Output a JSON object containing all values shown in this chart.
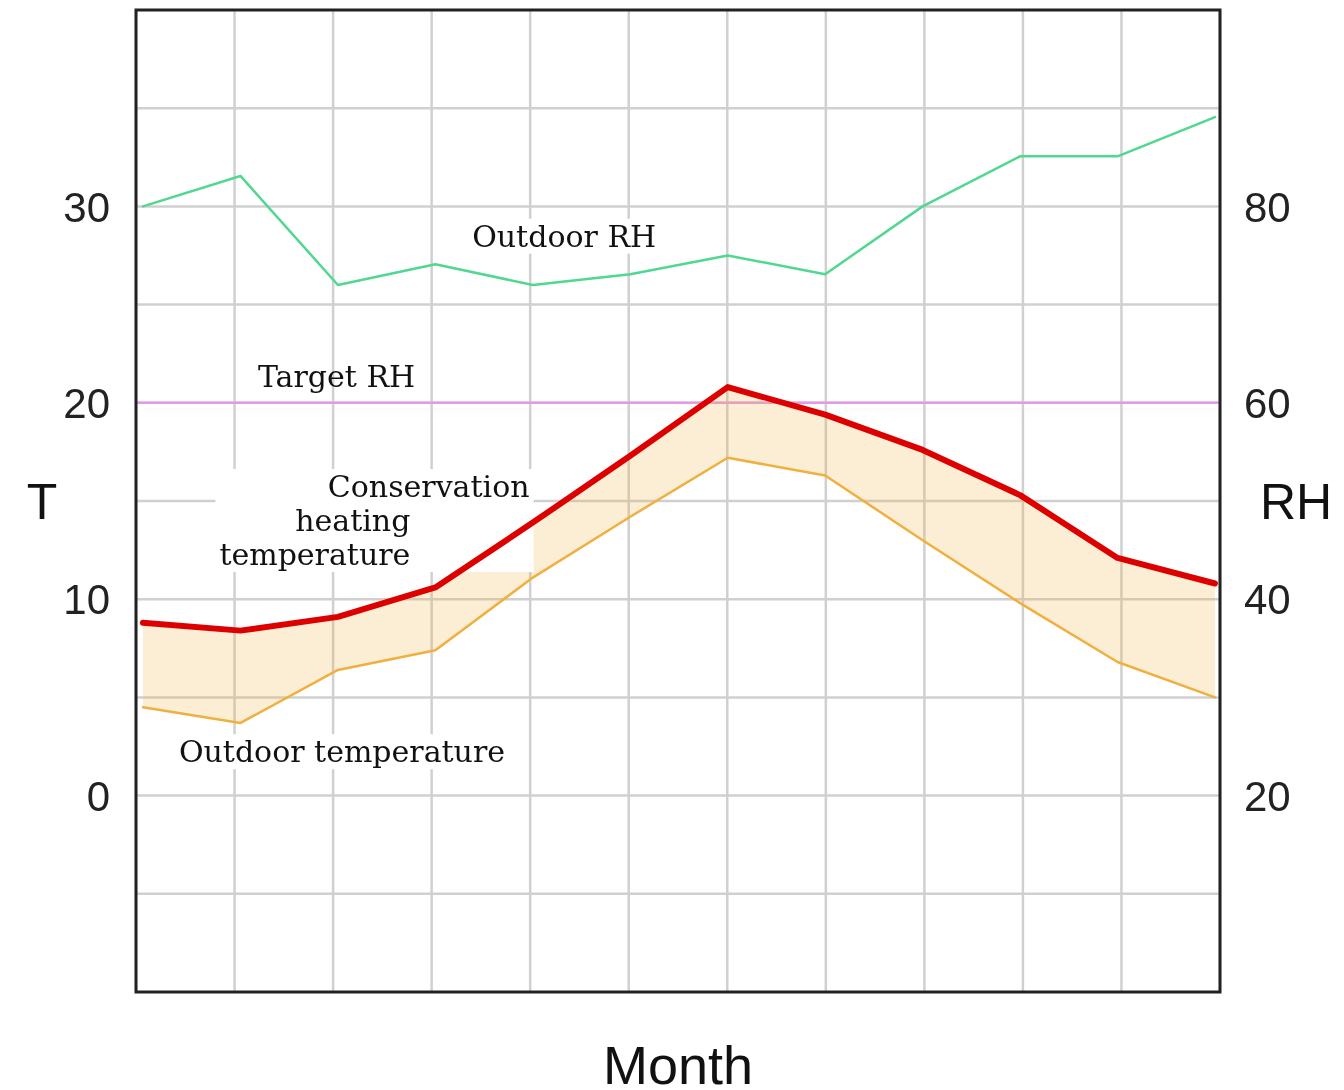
{
  "chart_data": {
    "type": "line",
    "xlabel": "Month",
    "ylabel": "T",
    "y2label": "RH",
    "categories": [
      null,
      null,
      null,
      null,
      null,
      null,
      null,
      null,
      null,
      null,
      null,
      null
    ],
    "ylim": [
      -10,
      40
    ],
    "yticks": [
      {
        "value": -5,
        "label": null
      },
      0,
      {
        "value": 5,
        "label": null
      },
      10,
      {
        "value": 15,
        "label": null
      },
      20,
      {
        "value": 25,
        "label": null
      },
      30,
      {
        "value": 35,
        "label": null
      }
    ],
    "y2lim": [
      0,
      100
    ],
    "y2ticks": [
      20,
      40,
      60,
      80
    ],
    "grid": true,
    "marker": "none",
    "line_style": "solid",
    "series": [
      {
        "name": "Conservation heating temperature",
        "color": "#dd0000",
        "values": [
          8.8,
          8.4,
          9.1,
          10.6,
          13.9,
          17.3,
          20.8,
          19.4,
          17.6,
          15.3,
          12.1,
          10.8
        ],
        "lower": [
          4.5,
          3.7,
          6.4,
          7.4,
          11.1,
          14.2,
          17.2,
          16.3,
          13.0,
          9.8,
          6.8,
          5.0
        ],
        "upper": [
          8.8,
          8.4,
          9.1,
          10.6,
          13.9,
          17.3,
          20.8,
          19.4,
          17.6,
          15.3,
          12.1,
          10.8
        ]
      },
      {
        "name": "Outdoor temperature",
        "color": "#f0b040",
        "values": [
          4.5,
          3.7,
          6.4,
          7.4,
          11.1,
          14.2,
          17.2,
          16.3,
          13.0,
          9.8,
          6.8,
          5.0
        ]
      },
      {
        "name": "Outdoor RH",
        "color": "#50d890",
        "axis": "y2",
        "values": [
          80.0,
          83.1,
          72.0,
          74.1,
          72.0,
          73.1,
          75.0,
          73.1,
          80.0,
          85.1,
          85.1,
          89.1
        ]
      }
    ],
    "ref_lines": [
      {
        "axis": "y2",
        "value": 60,
        "label": "Target RH",
        "color": "#e39be3"
      }
    ]
  }
}
